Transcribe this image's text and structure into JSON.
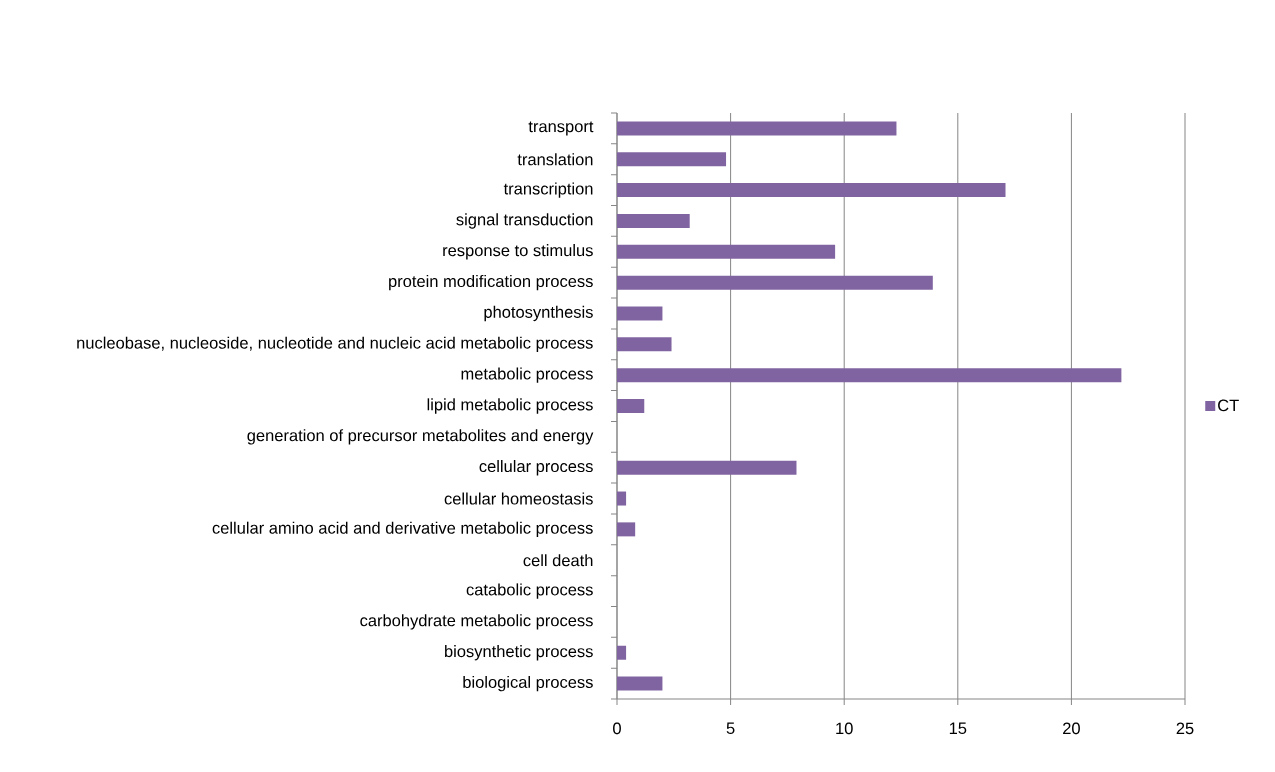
{
  "chart_data": {
    "type": "bar",
    "orientation": "horizontal",
    "categories": [
      "transport",
      "translation",
      "transcription",
      "signal transduction",
      "response to stimulus",
      "protein modification process",
      "photosynthesis",
      "nucleobase, nucleoside, nucleotide and nucleic acid metabolic process",
      "metabolic process",
      "lipid metabolic process",
      "generation of precursor metabolites and energy",
      "cellular process",
      "cellular homeostasis",
      "cellular amino acid and derivative metabolic process",
      "cell death",
      "catabolic process",
      "carbohydrate metabolic process",
      "biosynthetic process",
      "biological process"
    ],
    "series": [
      {
        "name": "CT",
        "color": "#8064a2",
        "values": [
          12.3,
          4.8,
          17.1,
          3.2,
          9.6,
          13.9,
          2.0,
          2.4,
          22.2,
          1.2,
          0,
          7.9,
          0.4,
          0.8,
          0,
          0,
          0,
          0.4,
          2.0
        ]
      }
    ],
    "xlim": [
      0,
      25
    ],
    "xticks": [
      0,
      5,
      10,
      15,
      20,
      25
    ],
    "grid": "x",
    "legend": "right"
  }
}
